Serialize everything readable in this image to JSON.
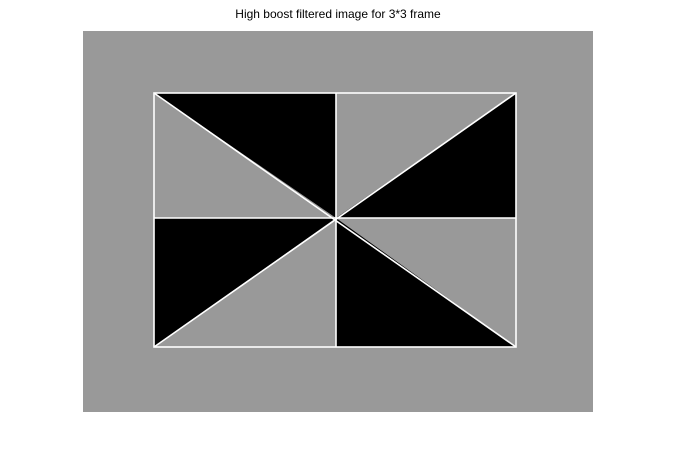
{
  "title": "High boost filtered image for 3*3 frame",
  "colors": {
    "background": "#999999",
    "fill": "#000000",
    "edge": "#ffffff",
    "page": "#ffffff"
  }
}
